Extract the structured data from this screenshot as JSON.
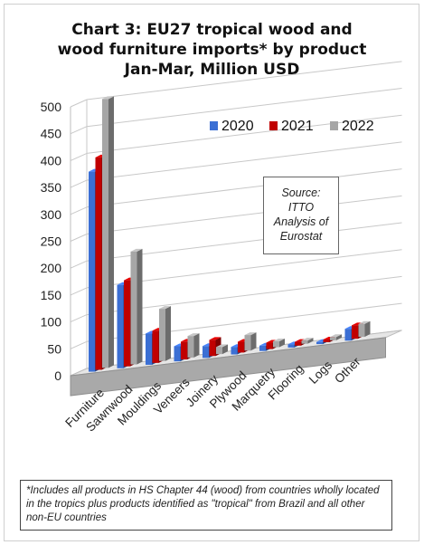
{
  "chart_data": {
    "type": "bar",
    "title": [
      "Chart 3: EU27 tropical wood and",
      "wood furniture imports* by product",
      "Jan-Mar, Million USD"
    ],
    "categories": [
      "Furniture",
      "Sawnwood",
      "Mouldings",
      "Veneers",
      "Joinery",
      "Plywood",
      "Marquetry",
      "Flooring",
      "Logs",
      "Other"
    ],
    "series": [
      {
        "name": "2020",
        "color": "#3b6fd4",
        "values": [
          372,
          155,
          58,
          28,
          22,
          14,
          10,
          6,
          4,
          22
        ]
      },
      {
        "name": "2021",
        "color": "#c00000",
        "values": [
          395,
          160,
          60,
          33,
          30,
          20,
          12,
          7,
          5,
          25
        ]
      },
      {
        "name": "2022",
        "color": "#a6a6a6",
        "values": [
          500,
          210,
          97,
          40,
          13,
          29,
          11,
          6,
          6,
          24
        ]
      }
    ],
    "ylim": [
      0,
      500
    ],
    "yticks": [
      0,
      50,
      100,
      150,
      200,
      250,
      300,
      350,
      400,
      450,
      500
    ],
    "legend_position": "top-right",
    "grid": true
  },
  "source_note": [
    "Source:",
    "ITTO",
    "Analysis of",
    "Eurostat"
  ],
  "footnote": "*Includes all products in HS Chapter 44 (wood) from countries wholly located in the tropics plus products identified as \"tropical\" from Brazil and all other non-EU countries"
}
